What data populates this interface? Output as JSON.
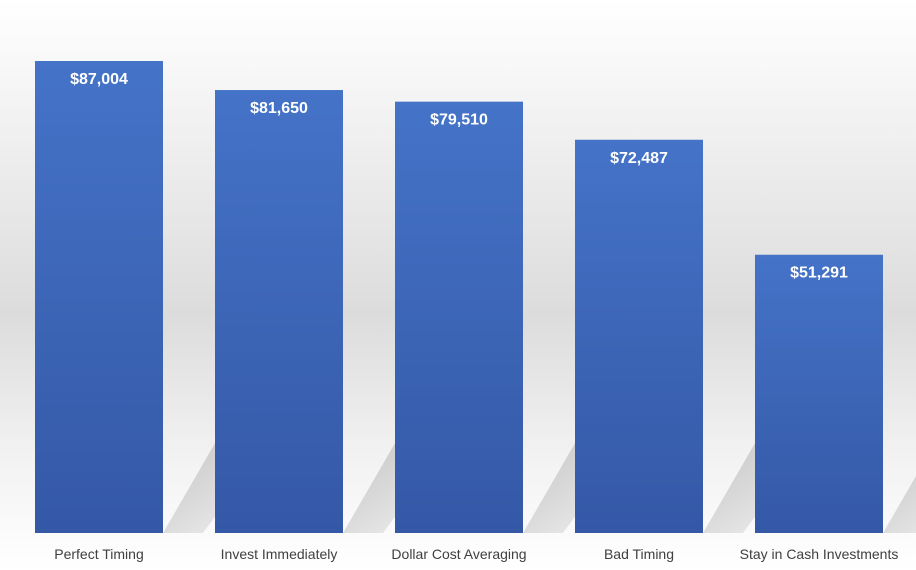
{
  "chart_data": {
    "type": "bar",
    "title": "",
    "xlabel": "",
    "ylabel": "",
    "categories": [
      "Perfect Timing",
      "Invest Immediately",
      "Dollar Cost Averaging",
      "Bad Timing",
      "Stay in Cash Investments"
    ],
    "values": [
      87004,
      81650,
      79510,
      72487,
      51291
    ],
    "value_labels": [
      "$87,004",
      "$81,650",
      "$79,510",
      "$72,487",
      "$51,291"
    ],
    "ylim": [
      0,
      95000
    ],
    "grid": false,
    "legend": "none",
    "colors": {
      "bar_top": "#4573c8",
      "bar_bottom": "#3458a6",
      "background_top": "#ffffff",
      "background_mid": "#dcdcdc",
      "shadow": "#c4c4c4",
      "category_text": "#404040",
      "value_text": "#ffffff"
    }
  }
}
